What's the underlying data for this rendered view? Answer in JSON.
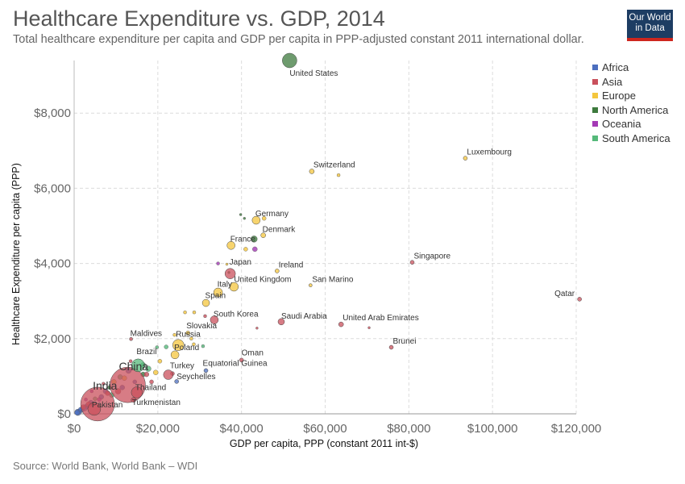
{
  "header": {
    "title": "Healthcare Expenditure vs. GDP, 2014",
    "subtitle": "Total healthcare expenditure per capita and GDP per capita in PPP-adjusted constant 2011 international dollar.",
    "logo_line1": "Our World",
    "logo_line2": "in Data"
  },
  "footer": {
    "source": "Source: World Bank, World Bank – WDI"
  },
  "colors": {
    "Africa": "#4c6fbf",
    "Asia": "#c9505c",
    "Europe": "#f4c63d",
    "North America": "#3d7a3d",
    "Oceania": "#a43ab5",
    "South America": "#55b97a"
  },
  "chart_data": {
    "type": "scatter",
    "xlabel": "GDP per capita, PPP (constant 2011 int-$)",
    "ylabel": "Healthcare Expenditure per capita (PPP)",
    "xlim": [
      0,
      120000
    ],
    "ylim": [
      0,
      9400
    ],
    "xticks": [
      0,
      20000,
      40000,
      60000,
      80000,
      100000,
      120000
    ],
    "xtick_labels": [
      "$0",
      "$20,000",
      "$40,000",
      "$60,000",
      "$80,000",
      "$100,000",
      "$120,000"
    ],
    "yticks": [
      0,
      2000,
      4000,
      6000,
      8000
    ],
    "ytick_labels": [
      "$0",
      "$2,000",
      "$4,000",
      "$6,000",
      "$8,000"
    ],
    "grid": true,
    "legend_position": "right",
    "legend": [
      "Africa",
      "Asia",
      "Europe",
      "North America",
      "Oceania",
      "South America"
    ],
    "points": [
      {
        "label": "United States",
        "x": 51500,
        "y": 9400,
        "region": "North America",
        "size": 9
      },
      {
        "label": "Luxembourg",
        "x": 93500,
        "y": 6800,
        "region": "Europe",
        "size": 2.5
      },
      {
        "label": "Switzerland",
        "x": 56800,
        "y": 6450,
        "region": "Europe",
        "size": 3
      },
      {
        "label": "Germany",
        "x": 43500,
        "y": 5150,
        "region": "Europe",
        "size": 5
      },
      {
        "label": "Denmark",
        "x": 45200,
        "y": 4750,
        "region": "Europe",
        "size": 3
      },
      {
        "label": "France",
        "x": 37500,
        "y": 4480,
        "region": "Europe",
        "size": 5
      },
      {
        "label": "Japan",
        "x": 37300,
        "y": 3730,
        "region": "Asia",
        "size": 6.5
      },
      {
        "label": "Ireland",
        "x": 48500,
        "y": 3800,
        "region": "Europe",
        "size": 2.5
      },
      {
        "label": "Singapore",
        "x": 80800,
        "y": 4030,
        "region": "Asia",
        "size": 2.5
      },
      {
        "label": "San Marino",
        "x": 56500,
        "y": 3420,
        "region": "Europe",
        "size": 2
      },
      {
        "label": "United Kingdom",
        "x": 38200,
        "y": 3380,
        "region": "Europe",
        "size": 5.5
      },
      {
        "label": "Italy",
        "x": 34400,
        "y": 3230,
        "region": "Europe",
        "size": 5.5
      },
      {
        "label": "Spain",
        "x": 31500,
        "y": 2950,
        "region": "Europe",
        "size": 4.5
      },
      {
        "label": "Qatar",
        "x": 120800,
        "y": 3050,
        "region": "Asia",
        "size": 2.5
      },
      {
        "label": "South Korea",
        "x": 33500,
        "y": 2500,
        "region": "Asia",
        "size": 5
      },
      {
        "label": "Saudi Arabia",
        "x": 49500,
        "y": 2450,
        "region": "Asia",
        "size": 4
      },
      {
        "label": "United Arab Emirates",
        "x": 63800,
        "y": 2380,
        "region": "Asia",
        "size": 3
      },
      {
        "label": "Slovakia",
        "x": 27200,
        "y": 2150,
        "region": "Europe",
        "size": 2.5
      },
      {
        "label": "Russia",
        "x": 24900,
        "y": 1830,
        "region": "Europe",
        "size": 7
      },
      {
        "label": "Maldives",
        "x": 13600,
        "y": 1990,
        "region": "Asia",
        "size": 2
      },
      {
        "label": "Brunei",
        "x": 75800,
        "y": 1770,
        "region": "Asia",
        "size": 2.5
      },
      {
        "label": "Poland",
        "x": 24100,
        "y": 1570,
        "region": "Europe",
        "size": 5
      },
      {
        "label": "Oman",
        "x": 40000,
        "y": 1430,
        "region": "Asia",
        "size": 2.5
      },
      {
        "label": "Brazil",
        "x": 15300,
        "y": 1290,
        "region": "South America",
        "size": 8
      },
      {
        "label": "China",
        "x": 12800,
        "y": 770,
        "region": "Asia",
        "size": 22
      },
      {
        "label": "Equatorial Guinea",
        "x": 31500,
        "y": 1150,
        "region": "Africa",
        "size": 2.5
      },
      {
        "label": "Turkey",
        "x": 22500,
        "y": 1040,
        "region": "Asia",
        "size": 6
      },
      {
        "label": "Seychelles",
        "x": 24500,
        "y": 860,
        "region": "Africa",
        "size": 2.5
      },
      {
        "label": "Thailand",
        "x": 15000,
        "y": 570,
        "region": "Asia",
        "size": 7
      },
      {
        "label": "India",
        "x": 5600,
        "y": 260,
        "region": "Asia",
        "size": 21
      },
      {
        "label": "Pakistan",
        "x": 4800,
        "y": 130,
        "region": "Asia",
        "size": 8
      },
      {
        "label": "Turkmenistan",
        "x": 14200,
        "y": 370,
        "region": "Asia",
        "size": 3
      }
    ],
    "extra_points": [
      {
        "x": 39800,
        "y": 5300,
        "region": "North America",
        "size": 1.5
      },
      {
        "x": 40700,
        "y": 5200,
        "region": "North America",
        "size": 1.5
      },
      {
        "x": 45400,
        "y": 5200,
        "region": "Europe",
        "size": 2.5
      },
      {
        "x": 63200,
        "y": 6350,
        "region": "Europe",
        "size": 2
      },
      {
        "x": 43000,
        "y": 4650,
        "region": "North America",
        "size": 4
      },
      {
        "x": 43200,
        "y": 4380,
        "region": "Oceania",
        "size": 3
      },
      {
        "x": 41000,
        "y": 4380,
        "region": "Europe",
        "size": 2.5
      },
      {
        "x": 34400,
        "y": 4000,
        "region": "Oceania",
        "size": 2
      },
      {
        "x": 36500,
        "y": 3980,
        "region": "Europe",
        "size": 1.5
      },
      {
        "x": 37000,
        "y": 3760,
        "region": "North America",
        "size": 1.5
      },
      {
        "x": 26500,
        "y": 2700,
        "region": "Europe",
        "size": 2
      },
      {
        "x": 28700,
        "y": 2700,
        "region": "Europe",
        "size": 2
      },
      {
        "x": 31300,
        "y": 2600,
        "region": "Asia",
        "size": 2
      },
      {
        "x": 43700,
        "y": 2280,
        "region": "Asia",
        "size": 1.5
      },
      {
        "x": 70500,
        "y": 2290,
        "region": "Asia",
        "size": 1.5
      },
      {
        "x": 24000,
        "y": 2100,
        "region": "Europe",
        "size": 2
      },
      {
        "x": 28000,
        "y": 2000,
        "region": "Europe",
        "size": 2
      },
      {
        "x": 28600,
        "y": 1850,
        "region": "Europe",
        "size": 2
      },
      {
        "x": 30800,
        "y": 1800,
        "region": "South America",
        "size": 2
      },
      {
        "x": 22000,
        "y": 1780,
        "region": "South America",
        "size": 2.5
      },
      {
        "x": 19800,
        "y": 1770,
        "region": "South America",
        "size": 2
      },
      {
        "x": 20500,
        "y": 1400,
        "region": "Europe",
        "size": 2.5
      },
      {
        "x": 17700,
        "y": 1200,
        "region": "South America",
        "size": 3.5
      },
      {
        "x": 19500,
        "y": 1100,
        "region": "Europe",
        "size": 3
      },
      {
        "x": 16500,
        "y": 1050,
        "region": "North America",
        "size": 3
      },
      {
        "x": 13000,
        "y": 1150,
        "region": "Africa",
        "size": 3.5
      },
      {
        "x": 11000,
        "y": 980,
        "region": "South America",
        "size": 3
      },
      {
        "x": 9500,
        "y": 850,
        "region": "Europe",
        "size": 3
      },
      {
        "x": 8500,
        "y": 700,
        "region": "North America",
        "size": 2.5
      },
      {
        "x": 12000,
        "y": 950,
        "region": "Europe",
        "size": 3
      },
      {
        "x": 17300,
        "y": 1050,
        "region": "Asia",
        "size": 3
      },
      {
        "x": 23500,
        "y": 1070,
        "region": "Asia",
        "size": 2.5
      },
      {
        "x": 16500,
        "y": 1300,
        "region": "South America",
        "size": 3
      },
      {
        "x": 18500,
        "y": 850,
        "region": "Asia",
        "size": 2.5
      },
      {
        "x": 7500,
        "y": 600,
        "region": "Africa",
        "size": 3
      },
      {
        "x": 6500,
        "y": 450,
        "region": "Africa",
        "size": 3
      },
      {
        "x": 9000,
        "y": 500,
        "region": "South America",
        "size": 3
      },
      {
        "x": 10500,
        "y": 600,
        "region": "Asia",
        "size": 3.5
      },
      {
        "x": 4000,
        "y": 300,
        "region": "Africa",
        "size": 3
      },
      {
        "x": 3000,
        "y": 200,
        "region": "Africa",
        "size": 3
      },
      {
        "x": 2500,
        "y": 150,
        "region": "Africa",
        "size": 3.5
      },
      {
        "x": 1800,
        "y": 100,
        "region": "Africa",
        "size": 3
      },
      {
        "x": 1200,
        "y": 60,
        "region": "Africa",
        "size": 3
      },
      {
        "x": 900,
        "y": 40,
        "region": "Africa",
        "size": 4
      },
      {
        "x": 700,
        "y": 30,
        "region": "Africa",
        "size": 3
      },
      {
        "x": 1500,
        "y": 120,
        "region": "Africa",
        "size": 2.5
      },
      {
        "x": 2200,
        "y": 180,
        "region": "Asia",
        "size": 3
      },
      {
        "x": 3500,
        "y": 250,
        "region": "Asia",
        "size": 3.5
      },
      {
        "x": 6000,
        "y": 380,
        "region": "Oceania",
        "size": 2.5
      },
      {
        "x": 8000,
        "y": 550,
        "region": "Asia",
        "size": 3
      },
      {
        "x": 11500,
        "y": 700,
        "region": "Africa",
        "size": 3
      },
      {
        "x": 14500,
        "y": 850,
        "region": "Africa",
        "size": 2.5
      },
      {
        "x": 5000,
        "y": 400,
        "region": "South America",
        "size": 2.5
      },
      {
        "x": 4200,
        "y": 600,
        "region": "Oceania",
        "size": 2
      },
      {
        "x": 2800,
        "y": 380,
        "region": "Oceania",
        "size": 2
      },
      {
        "x": 7000,
        "y": 800,
        "region": "Asia",
        "size": 2
      },
      {
        "x": 13500,
        "y": 1400,
        "region": "Asia",
        "size": 2
      }
    ]
  }
}
